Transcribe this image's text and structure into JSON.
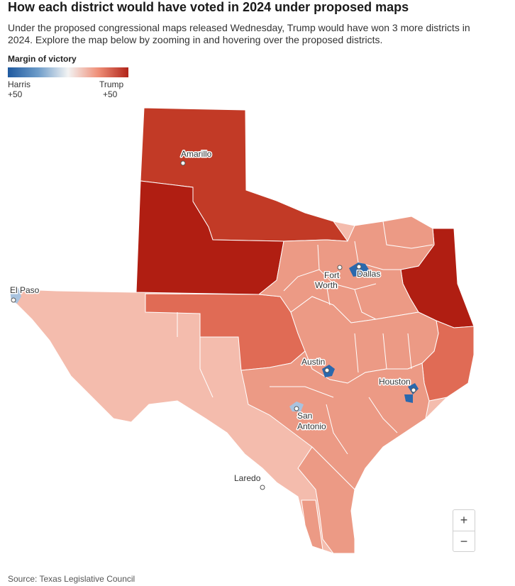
{
  "header": {
    "title": "How each district would have voted in 2024 under proposed maps",
    "subtitle": "Under the proposed congressional maps released Wednesday, Trump would have won 3 more districts in 2024. Explore the map below by zooming in and hovering over the proposed districts."
  },
  "legend": {
    "title": "Margin of victory",
    "left_name": "Harris",
    "left_value": "+50",
    "right_name": "Trump",
    "right_value": "+50"
  },
  "cities": {
    "amarillo": "Amarillo",
    "el_paso": "El Paso",
    "fort": "Fort",
    "worth": "Worth",
    "dallas": "Dallas",
    "austin": "Austin",
    "houston": "Houston",
    "san": "San",
    "antonio": "Antonio",
    "laredo": "Laredo"
  },
  "zoom": {
    "in": "+",
    "out": "−"
  },
  "source": "Source: Texas Legislative Council",
  "colors": {
    "trump_strong": "#b01e12",
    "trump_high": "#c23a26",
    "trump_mid": "#e06b55",
    "trump_light": "#ec9a85",
    "trump_faint": "#f4bcad",
    "harris": "#2a68ad"
  }
}
